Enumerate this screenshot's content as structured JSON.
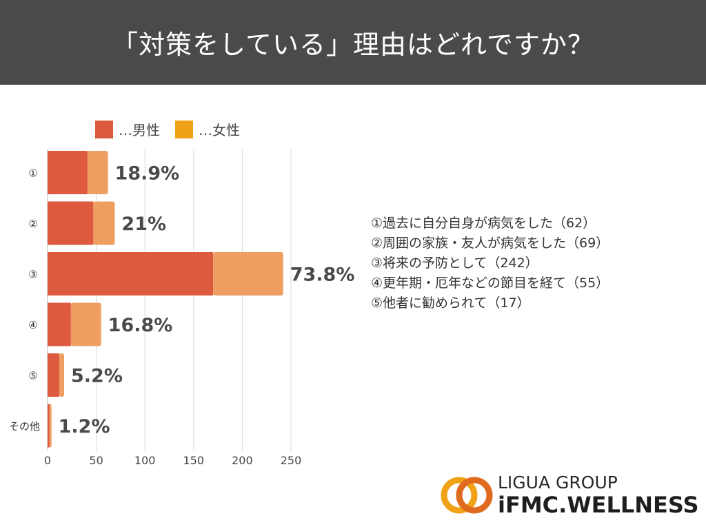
{
  "title": "「対策をしている」理由はどれですか？",
  "colors": {
    "male": "#dd5a3f",
    "female": "#ee9e60",
    "header_bg": "#4a4a4a",
    "grid": "#d9d9d9"
  },
  "chart_data": {
    "type": "bar",
    "orientation": "horizontal",
    "stacked": true,
    "categories": [
      "①",
      "②",
      "③",
      "④",
      "⑤",
      "その他"
    ],
    "series": [
      {
        "name": "…男性",
        "values": [
          41,
          47,
          170,
          24,
          12,
          2
        ]
      },
      {
        "name": "…女性",
        "values": [
          21,
          22,
          72,
          31,
          5,
          2
        ]
      }
    ],
    "data_labels": [
      "18.9%",
      "21%",
      "73.8%",
      "16.8%",
      "5.2%",
      "1.2%"
    ],
    "x_ticks": [
      0,
      50,
      100,
      150,
      200,
      250
    ],
    "xlim": [
      0,
      250
    ],
    "legend_position": "top-left",
    "grid": true
  },
  "legend_labels": {
    "male": "…男性",
    "female": "…女性"
  },
  "notes": [
    "①過去に自分自身が病気をした（62）",
    "②周囲の家族・友人が病気をした（69）",
    "③将来の予防として（242）",
    "④更年期・厄年などの節目を経て（55）",
    "⑤他者に勧められて（17）"
  ],
  "logo": {
    "line1": "LIGUA GROUP",
    "line2": "iFMC.WELLNESS"
  }
}
